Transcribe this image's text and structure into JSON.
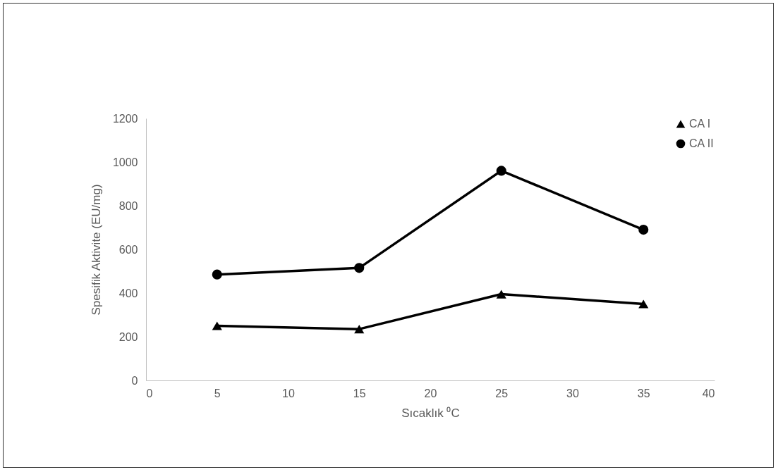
{
  "chart_data": {
    "type": "line",
    "xlabel": "Sıcaklık ⁰C",
    "ylabel": "Spesifik Aktivite (EU/mg)",
    "x": [
      5,
      15,
      25,
      35
    ],
    "series": [
      {
        "name": "CA I",
        "color": "#000000",
        "marker": "triangle",
        "values": [
          250,
          235,
          395,
          350
        ]
      },
      {
        "name": "CA II",
        "color": "#000000",
        "marker": "circle",
        "values": [
          485,
          515,
          960,
          690
        ]
      }
    ],
    "xlim": [
      0,
      40
    ],
    "xticks": [
      0,
      5,
      10,
      15,
      20,
      25,
      30,
      35,
      40
    ],
    "ylim": [
      0,
      1200
    ],
    "yticks": [
      0,
      200,
      400,
      600,
      800,
      1000,
      1200
    ],
    "grid": false,
    "legend": "top right",
    "line_style": "solid"
  }
}
